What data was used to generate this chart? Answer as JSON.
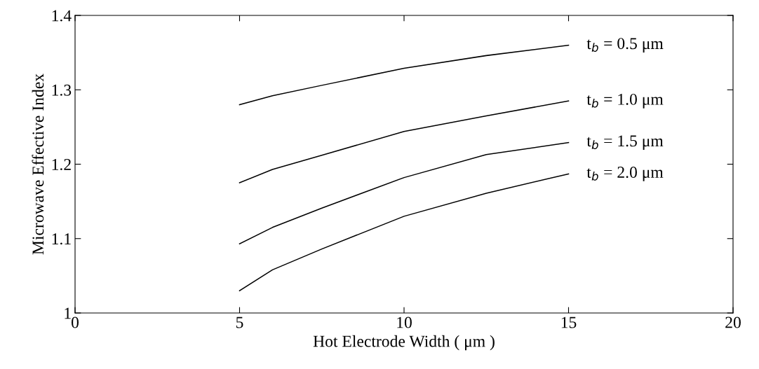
{
  "chart_data": {
    "type": "line",
    "xlabel": "Hot Electrode Width ( μm )",
    "ylabel": "Microwave Effective Index",
    "x": [
      5,
      6,
      7.5,
      10,
      12.5,
      15
    ],
    "series": [
      {
        "name": "t$_{b}$ = 0.5 μm",
        "color": "#000000",
        "values": [
          1.28,
          1.292,
          1.306,
          1.329,
          1.346,
          1.36
        ]
      },
      {
        "name": "t$_{b}$ = 1.0 μm",
        "color": "#000000",
        "values": [
          1.175,
          1.193,
          1.212,
          1.244,
          1.265,
          1.285
        ]
      },
      {
        "name": "t$_{b}$ = 1.5 μm",
        "color": "#000000",
        "values": [
          1.093,
          1.115,
          1.141,
          1.182,
          1.213,
          1.229
        ]
      },
      {
        "name": "t$_{b}$ = 2.0 μm",
        "color": "#000000",
        "values": [
          1.03,
          1.058,
          1.086,
          1.13,
          1.161,
          1.187
        ]
      }
    ],
    "xlim": [
      0,
      20
    ],
    "xticks": [
      0,
      5,
      10,
      15,
      20
    ],
    "ylim": [
      1,
      1.4
    ],
    "yticks": [
      1,
      1.1,
      1.2,
      1.3,
      1.4
    ],
    "grid": false,
    "legend": false,
    "marker": "none",
    "line_style": "solid"
  }
}
